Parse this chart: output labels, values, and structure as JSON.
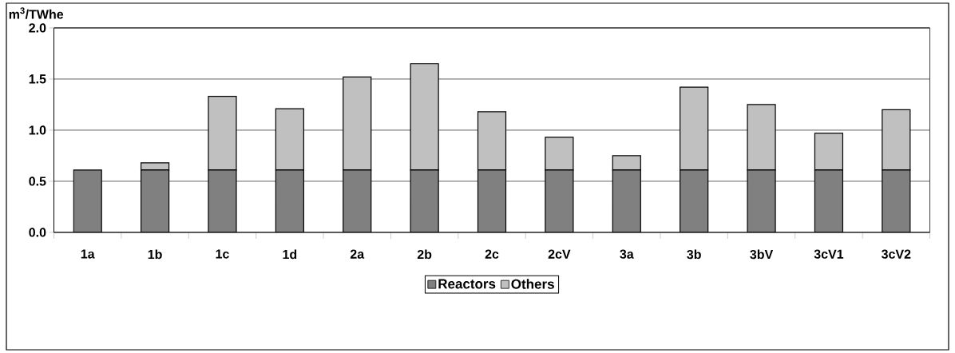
{
  "chart_data": {
    "type": "bar",
    "stacked": true,
    "ylabel": "m$^{3}$/TWhe",
    "categories": [
      "1a",
      "1b",
      "1c",
      "1d",
      "2a",
      "2b",
      "2c",
      "2cV",
      "3a",
      "3b",
      "3bV",
      "3cV1",
      "3cV2"
    ],
    "series": [
      {
        "name": "Reactors",
        "color": "#808080",
        "values": [
          0.61,
          0.61,
          0.61,
          0.61,
          0.61,
          0.61,
          0.61,
          0.61,
          0.61,
          0.61,
          0.61,
          0.61,
          0.61
        ]
      },
      {
        "name": "Others",
        "color": "#c0c0c0",
        "values": [
          0,
          0.07,
          0.72,
          0.6,
          0.91,
          1.04,
          0.57,
          0.32,
          0.14,
          0.81,
          0.64,
          0.36,
          0.59
        ]
      }
    ],
    "ylim": [
      0,
      2
    ],
    "yticks": [
      {
        "value": 0,
        "label": "0.0"
      },
      {
        "value": 0.5,
        "label": "0.5"
      },
      {
        "value": 1,
        "label": "1.0"
      },
      {
        "value": 1.5,
        "label": "1.5"
      },
      {
        "value": 2,
        "label": "2.0"
      }
    ],
    "grid": "y",
    "legend": "bottom"
  }
}
